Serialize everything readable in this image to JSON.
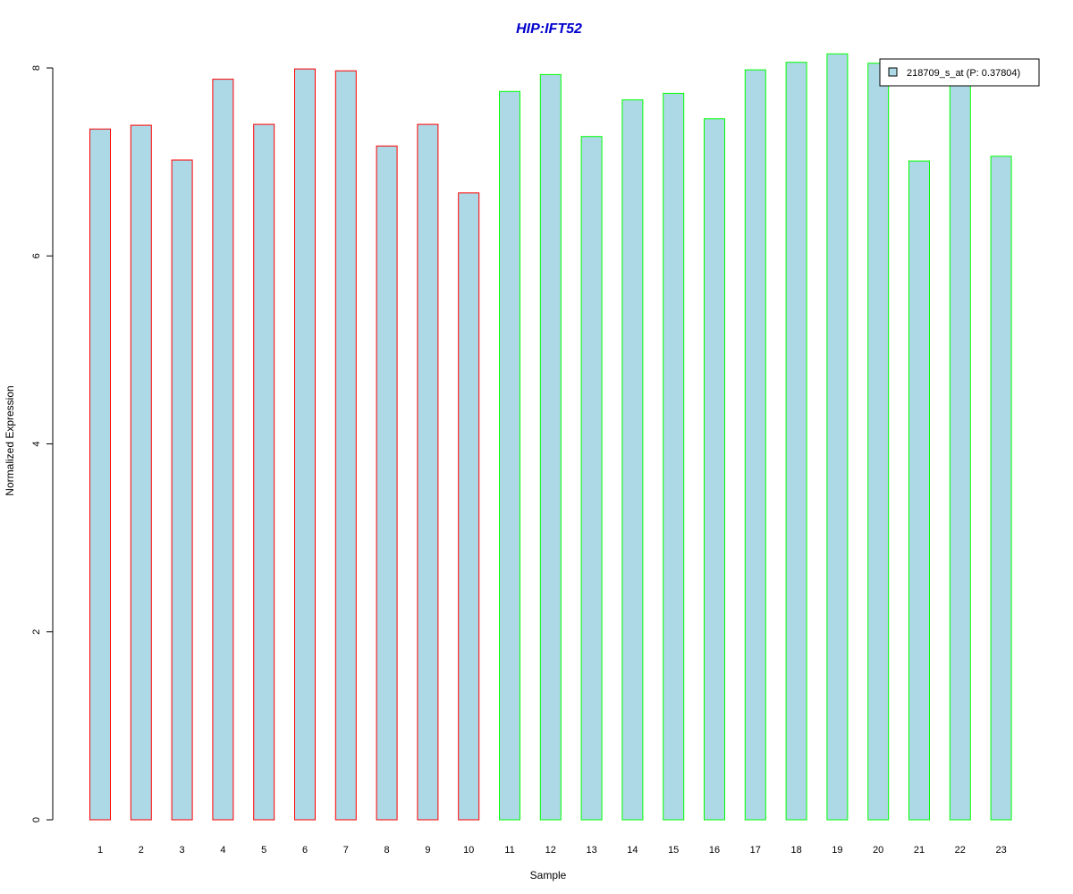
{
  "colors": {
    "title": "#0000CC",
    "bar_fill": "#ADD8E6",
    "group1_border": "#FF0000",
    "group2_border": "#00FF00",
    "axis": "#000000"
  },
  "chart_data": {
    "type": "bar",
    "title": "HIP:IFT52",
    "xlabel": "Sample",
    "ylabel": "Normalized Expression",
    "ylim": [
      0,
      8.15
    ],
    "yticks": [
      0,
      2,
      4,
      6,
      8
    ],
    "grid": false,
    "legend_position": "top-right",
    "categories": [
      "1",
      "2",
      "3",
      "4",
      "5",
      "6",
      "7",
      "8",
      "9",
      "10",
      "11",
      "12",
      "13",
      "14",
      "15",
      "16",
      "17",
      "18",
      "19",
      "20",
      "21",
      "22",
      "23"
    ],
    "series": [
      {
        "name": "218709_s_at (P: 0.37804)",
        "values": [
          7.35,
          7.39,
          7.02,
          7.88,
          7.4,
          7.99,
          7.97,
          7.17,
          7.4,
          6.67,
          7.75,
          7.93,
          7.27,
          7.66,
          7.73,
          7.46,
          7.98,
          8.06,
          8.15,
          8.05,
          7.01,
          7.85,
          7.06
        ],
        "groups": [
          "red",
          "red",
          "red",
          "red",
          "red",
          "red",
          "red",
          "red",
          "red",
          "red",
          "green",
          "green",
          "green",
          "green",
          "green",
          "green",
          "green",
          "green",
          "green",
          "green",
          "green",
          "green",
          "green"
        ]
      }
    ]
  }
}
